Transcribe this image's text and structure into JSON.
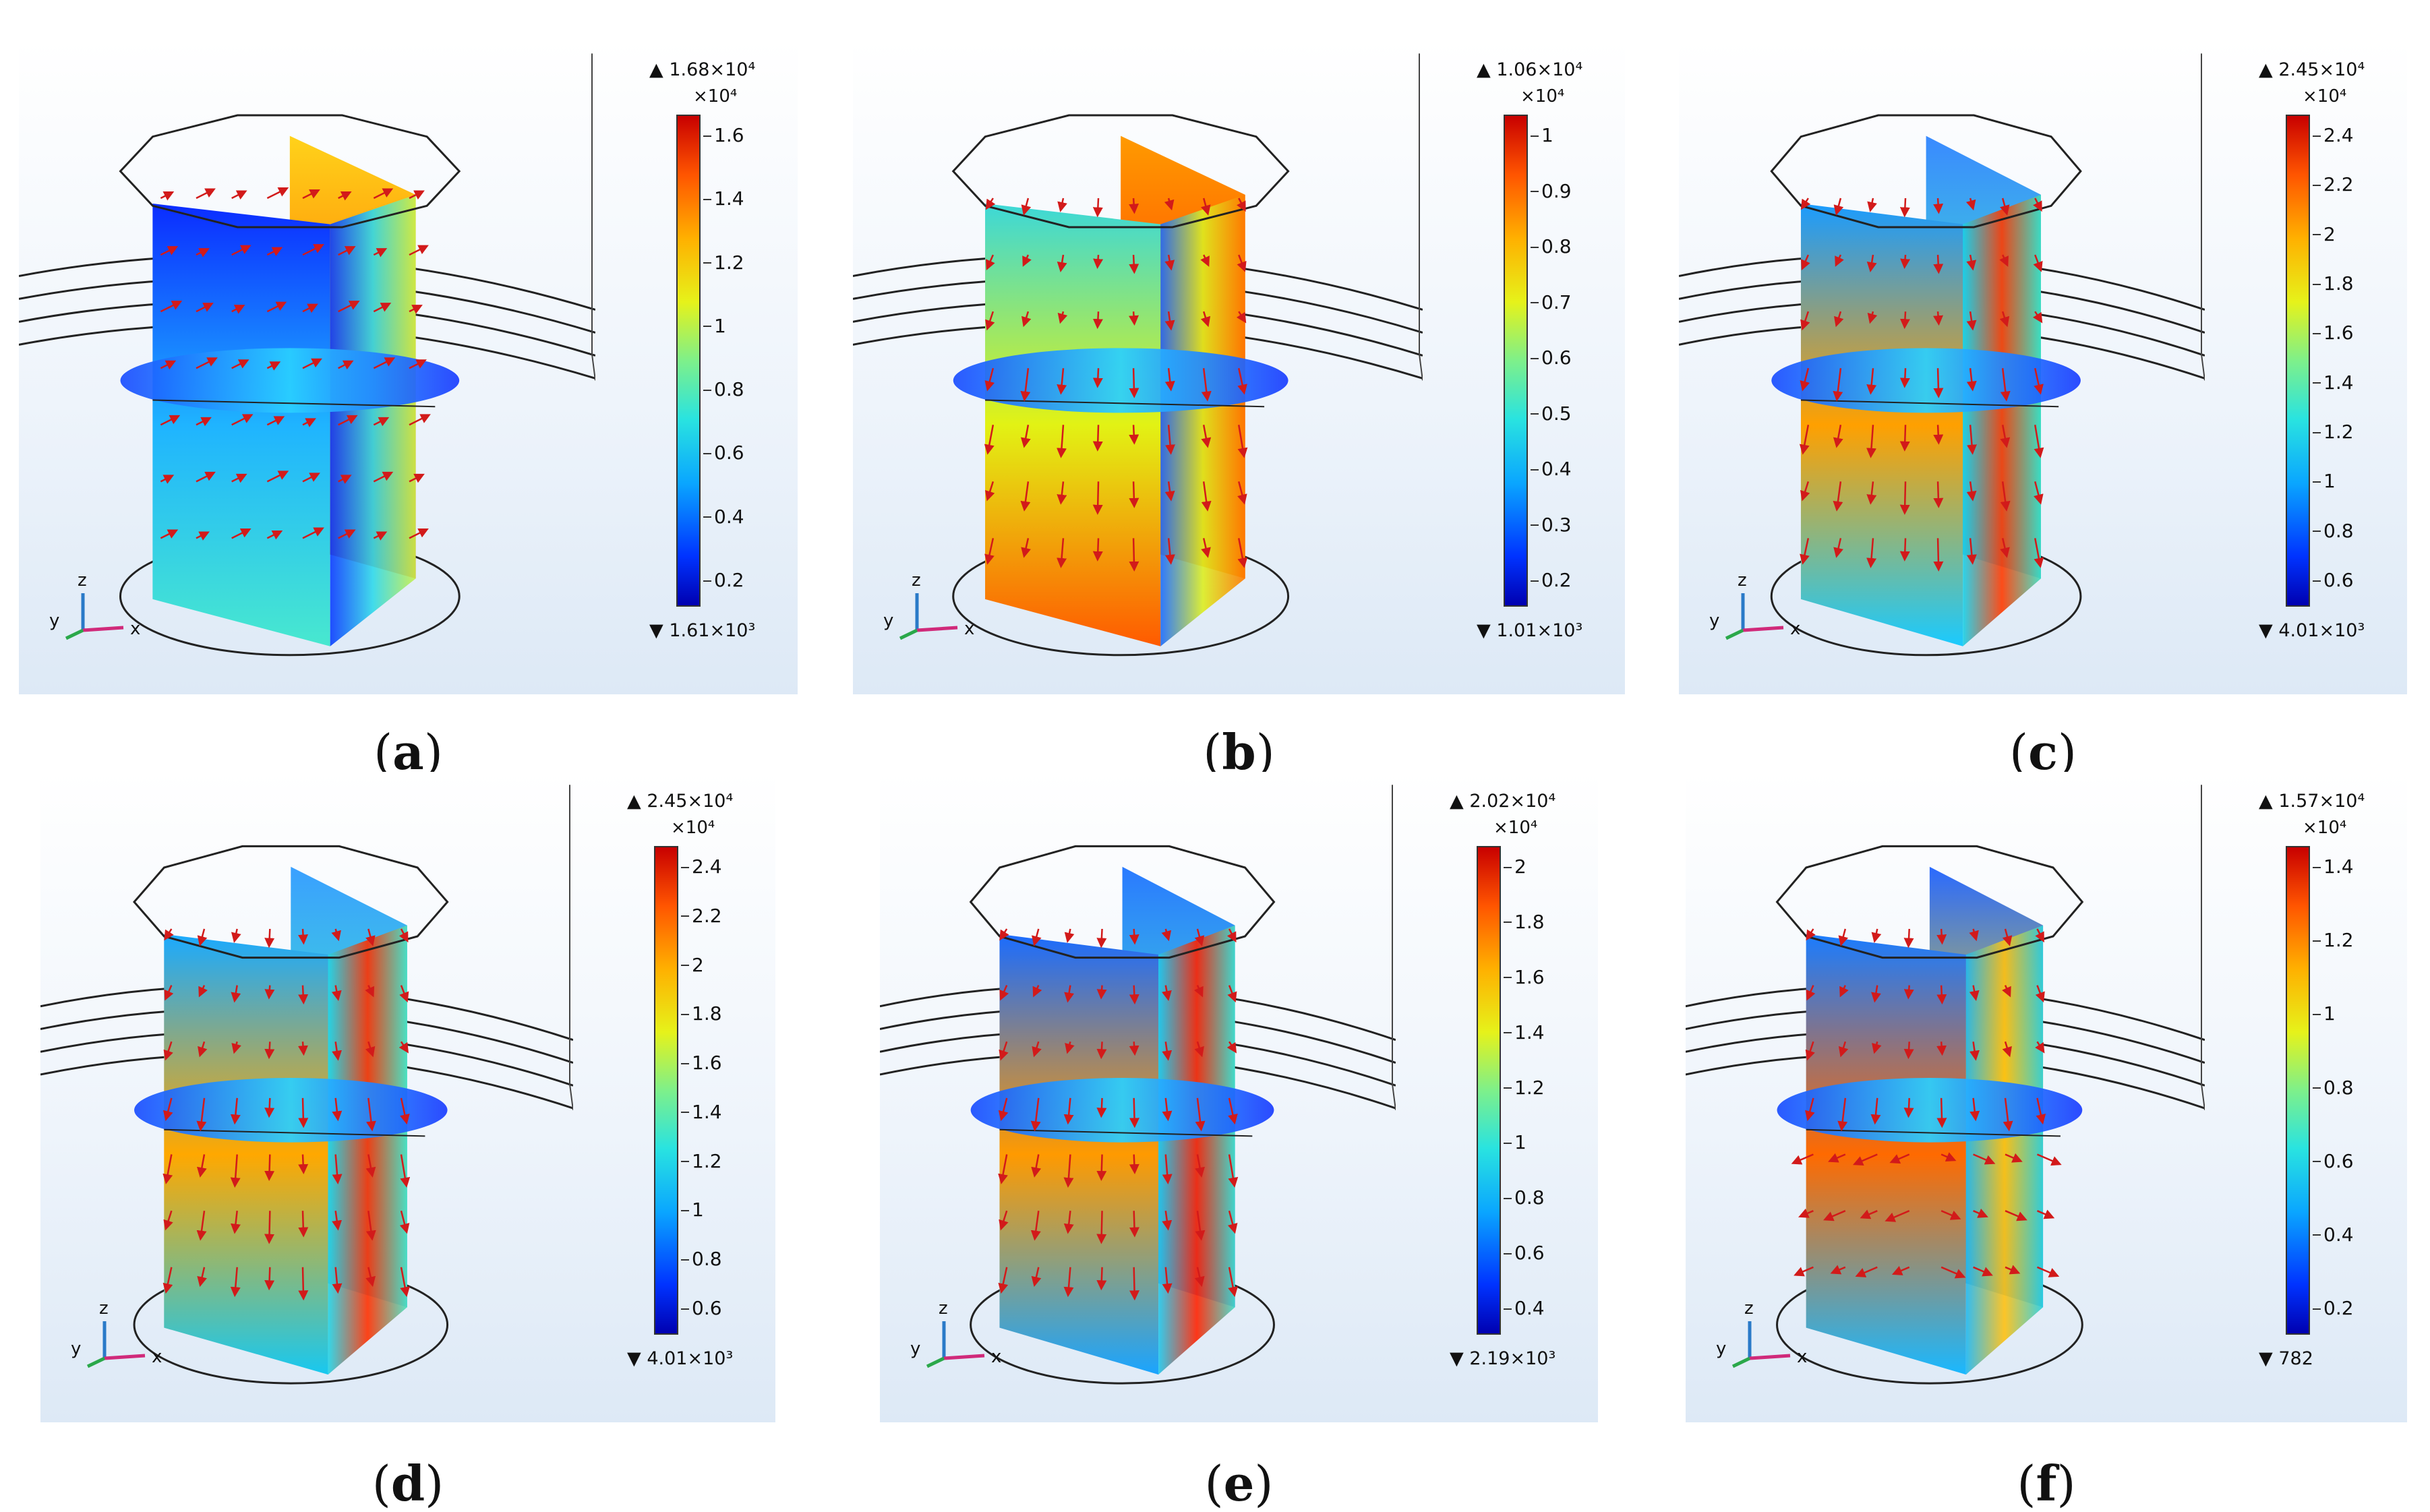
{
  "panels": [
    {
      "caption_open": "(",
      "caption_letter": "a",
      "caption_close": ")",
      "max_label": "▲ 1.68×10⁴",
      "min_label": "▼ 1.61×10³",
      "multiplier": "×10⁴",
      "ticks": [
        "0.2",
        "0.4",
        "0.6",
        "0.8",
        "1",
        "1.2",
        "1.4",
        "1.6"
      ],
      "axes": {
        "x": "x",
        "y": "y",
        "z": "z"
      }
    },
    {
      "caption_open": "(",
      "caption_letter": "b",
      "caption_close": ")",
      "max_label": "▲ 1.06×10⁴",
      "min_label": "▼ 1.01×10³",
      "multiplier": "×10⁴",
      "ticks": [
        "0.2",
        "0.3",
        "0.4",
        "0.5",
        "0.6",
        "0.7",
        "0.8",
        "0.9",
        "1"
      ],
      "axes": {
        "x": "x",
        "y": "y",
        "z": "z"
      }
    },
    {
      "caption_open": "(",
      "caption_letter": "c",
      "caption_close": ")",
      "max_label": "▲ 2.45×10⁴",
      "min_label": "▼ 4.01×10³",
      "multiplier": "×10⁴",
      "ticks": [
        "0.6",
        "0.8",
        "1",
        "1.2",
        "1.4",
        "1.6",
        "1.8",
        "2",
        "2.2",
        "2.4"
      ],
      "axes": {
        "x": "x",
        "y": "y",
        "z": "z"
      }
    },
    {
      "caption_open": "(",
      "caption_letter": "d",
      "caption_close": ")",
      "max_label": "▲ 2.45×10⁴",
      "min_label": "▼ 4.01×10³",
      "multiplier": "×10⁴",
      "ticks": [
        "0.6",
        "0.8",
        "1",
        "1.2",
        "1.4",
        "1.6",
        "1.8",
        "2",
        "2.2",
        "2.4"
      ],
      "axes": {
        "x": "x",
        "y": "y",
        "z": "z"
      }
    },
    {
      "caption_open": "(",
      "caption_letter": "e",
      "caption_close": ")",
      "max_label": "▲ 2.02×10⁴",
      "min_label": "▼ 2.19×10³",
      "multiplier": "×10⁴",
      "ticks": [
        "0.4",
        "0.6",
        "0.8",
        "1",
        "1.2",
        "1.4",
        "1.6",
        "1.8",
        "2"
      ],
      "axes": {
        "x": "x",
        "y": "y",
        "z": "z"
      }
    },
    {
      "caption_open": "(",
      "caption_letter": "f",
      "caption_close": ")",
      "max_label": "▲ 1.57×10⁴",
      "min_label": "▼ 782",
      "multiplier": "×10⁴",
      "ticks": [
        "0.2",
        "0.4",
        "0.6",
        "0.8",
        "1",
        "1.2",
        "1.4"
      ],
      "axes": {
        "x": "x",
        "y": "y",
        "z": "z"
      }
    }
  ],
  "colors": {
    "background": "#ffffff",
    "colormap_low": "#0000b0",
    "colormap_mid": "#7ef08a",
    "colormap_high": "#c80000",
    "arrow": "#d21a1a",
    "outline": "#222222"
  }
}
